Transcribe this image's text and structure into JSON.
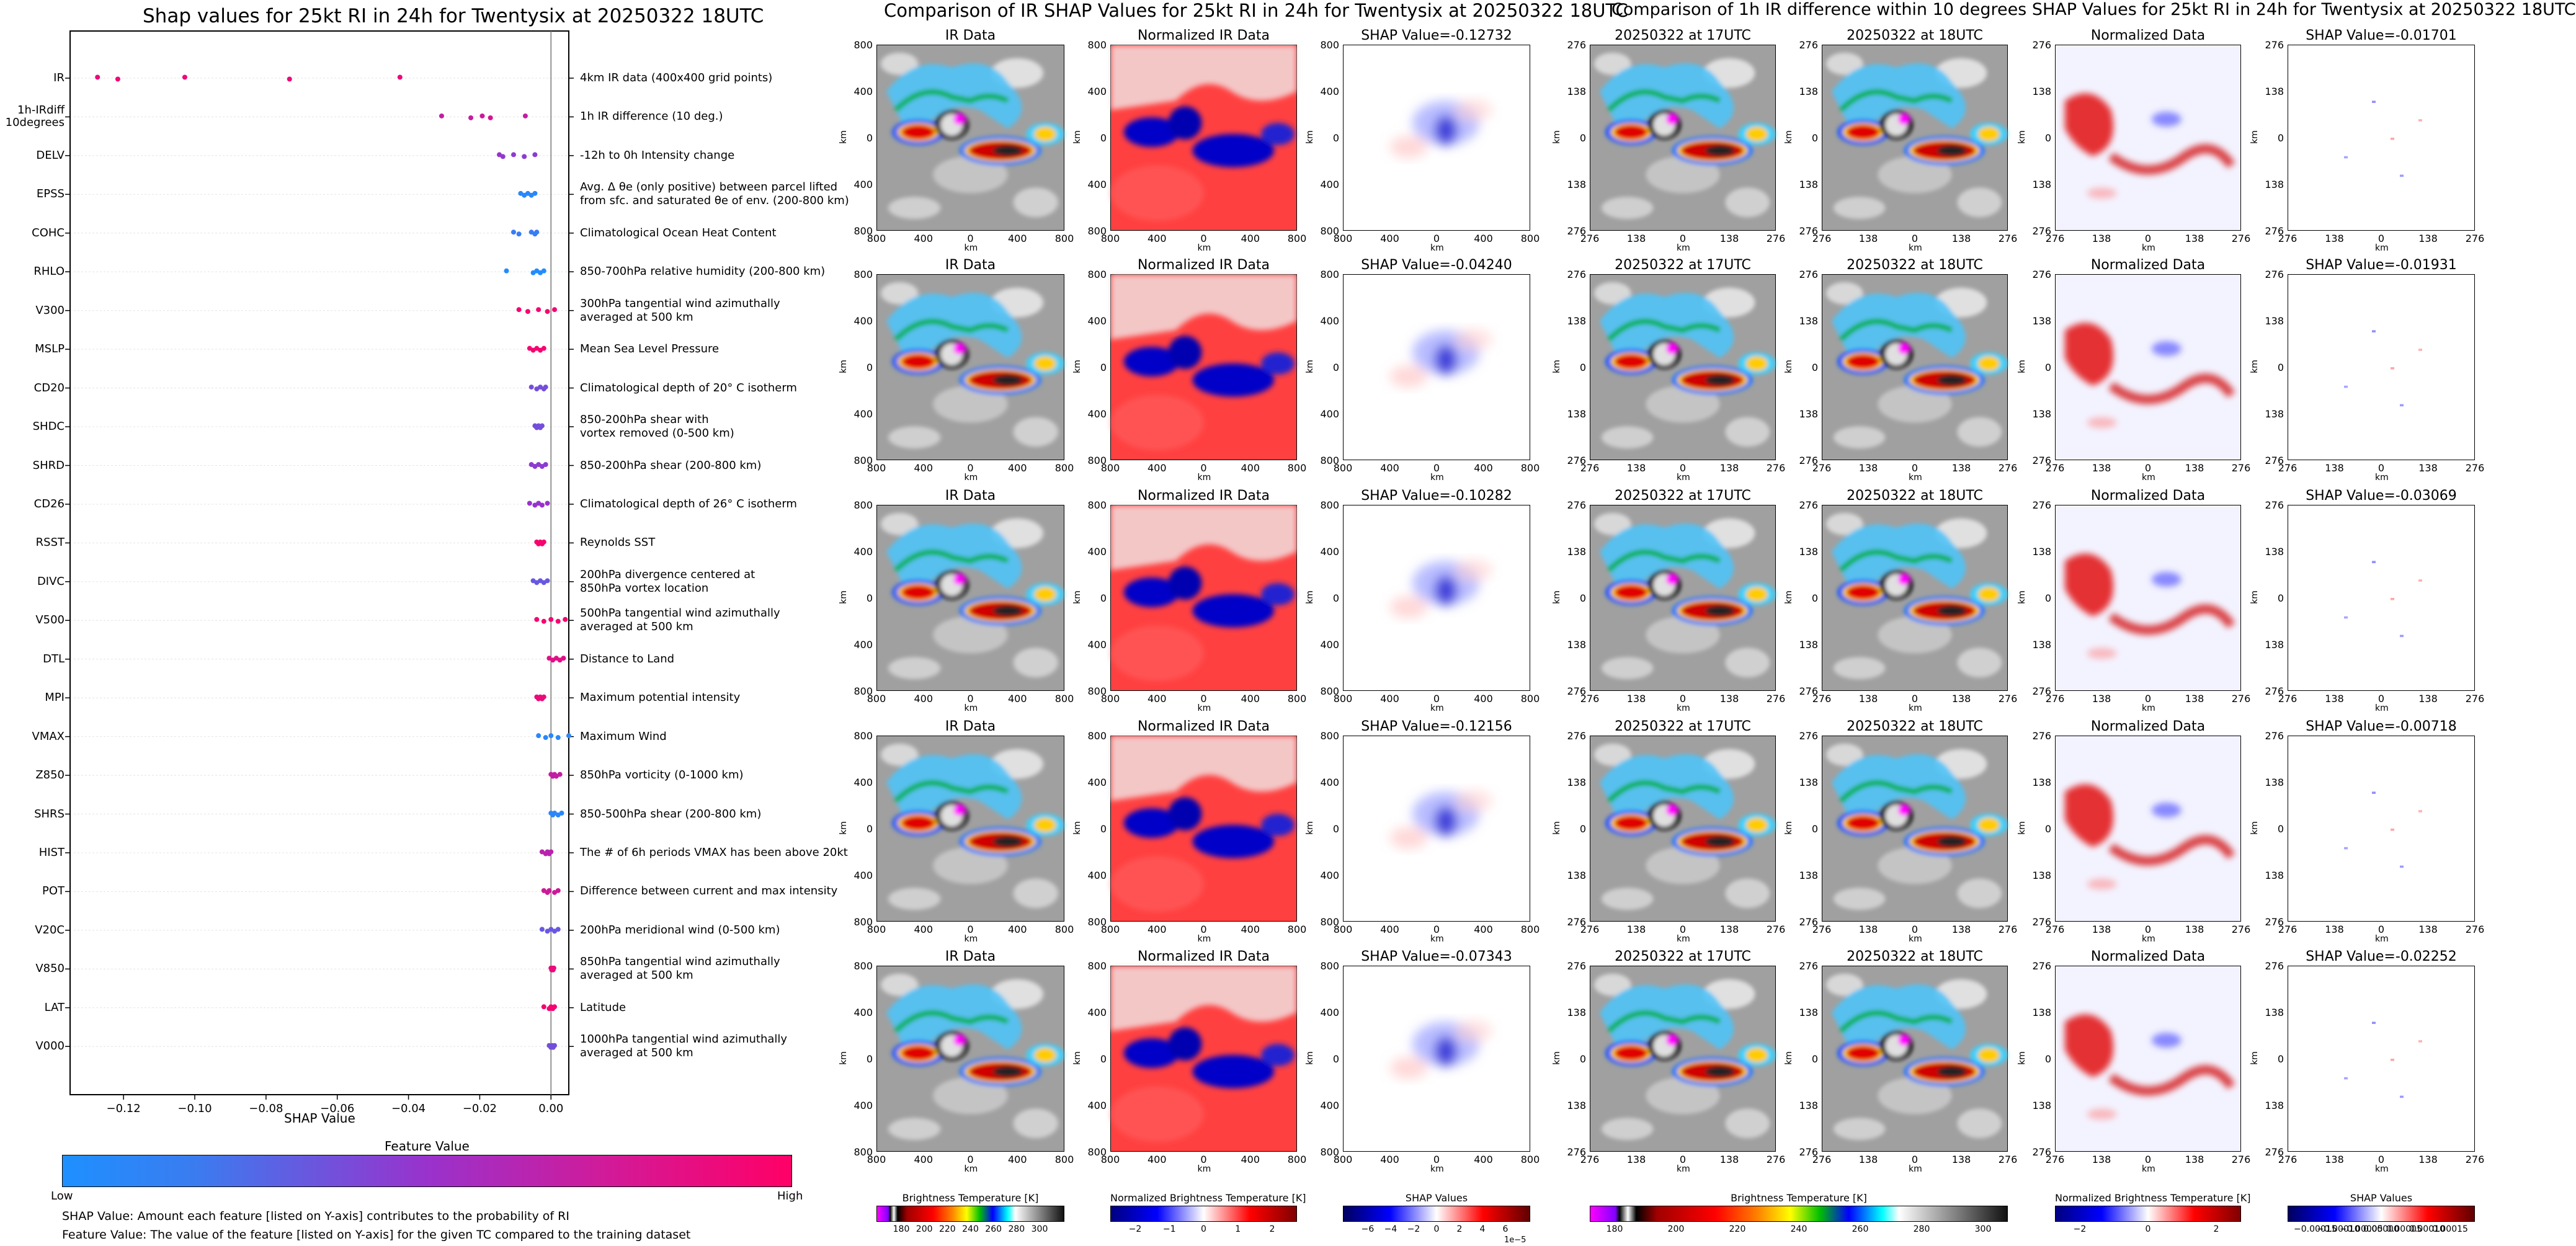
{
  "left": {
    "title": "Shap values for 25kt RI in 24h for Twentysix at 20250322 18UTC",
    "xlabel": "SHAP Value",
    "features": [
      {
        "code": "IR",
        "desc": "4km IR data (400x400 grid points)"
      },
      {
        "code": "1h-IRdiff\n10degrees",
        "desc": "1h IR difference (10 deg.)"
      },
      {
        "code": "DELV",
        "desc": "-12h to 0h Intensity change"
      },
      {
        "code": "EPSS",
        "desc": "Avg. Δ θe (only positive) between parcel lifted\nfrom sfc. and saturated θe of env. (200-800 km)"
      },
      {
        "code": "COHC",
        "desc": "Climatological Ocean Heat Content"
      },
      {
        "code": "RHLO",
        "desc": "850-700hPa relative humidity (200-800 km)"
      },
      {
        "code": "V300",
        "desc": "300hPa tangential wind azimuthally\naveraged at 500 km"
      },
      {
        "code": "MSLP",
        "desc": "Mean Sea Level Pressure"
      },
      {
        "code": "CD20",
        "desc": "Climatological depth of 20° C isotherm"
      },
      {
        "code": "SHDC",
        "desc": "850-200hPa shear with\nvortex removed (0-500 km)"
      },
      {
        "code": "SHRD",
        "desc": "850-200hPa shear (200-800 km)"
      },
      {
        "code": "CD26",
        "desc": "Climatological depth of 26° C isotherm"
      },
      {
        "code": "RSST",
        "desc": "Reynolds SST"
      },
      {
        "code": "DIVC",
        "desc": "200hPa divergence centered at\n850hPa vortex location"
      },
      {
        "code": "V500",
        "desc": "500hPa tangential wind azimuthally\naveraged at 500 km"
      },
      {
        "code": "DTL",
        "desc": "Distance to Land"
      },
      {
        "code": "MPI",
        "desc": "Maximum potential intensity"
      },
      {
        "code": "VMAX",
        "desc": "Maximum Wind"
      },
      {
        "code": "Z850",
        "desc": "850hPa vorticity (0-1000 km)"
      },
      {
        "code": "SHRS",
        "desc": "850-500hPa shear (200-800 km)"
      },
      {
        "code": "HIST",
        "desc": "The # of 6h periods VMAX has been above 20kt"
      },
      {
        "code": "POT",
        "desc": "Difference between current and max intensity"
      },
      {
        "code": "V20C",
        "desc": "200hPa meridional wind (0-500 km)"
      },
      {
        "code": "V850",
        "desc": "850hPa tangential wind azimuthally\naveraged at 500 km"
      },
      {
        "code": "LAT",
        "desc": "Latitude"
      },
      {
        "code": "V000",
        "desc": "1000hPa tangential wind azimuthally\naveraged at 500 km"
      }
    ],
    "xticks": [
      "−0.12",
      "−0.10",
      "−0.08",
      "−0.06",
      "−0.04",
      "−0.02",
      "0.00"
    ],
    "legend_title": "Feature Value",
    "legend_low": "Low",
    "legend_high": "High",
    "note1": "SHAP Value: Amount each feature [listed on Y-axis] contributes to the probability of RI",
    "note2": "Feature Value: The value of the feature [listed on Y-axis] for the given TC compared to the training dataset"
  },
  "mid": {
    "title": "Comparison of IR SHAP Values for 25kt RI in 24h for Twentysix at 20250322 18UTC",
    "col_titles": [
      "IR Data",
      "Normalized IR Data"
    ],
    "shap_prefix": "SHAP Value=",
    "shap_values": [
      "-0.12732",
      "-0.04240",
      "-0.10282",
      "-0.12156",
      "-0.07343"
    ],
    "ticks": [
      "800",
      "400",
      "0",
      "400",
      "800"
    ],
    "axis_label": "km",
    "cbar_labels": [
      "Brightness Temperature [K]",
      "Normalized Brightness Temperature [K]",
      "SHAP Values"
    ],
    "cbar1_ticks": [
      "180",
      "200",
      "220",
      "240",
      "260",
      "280",
      "300"
    ],
    "cbar2_ticks": [
      "−2",
      "−1",
      "0",
      "1",
      "2"
    ],
    "cbar3_ticks": [
      "−6",
      "−4",
      "−2",
      "0",
      "2",
      "4",
      "6"
    ],
    "cbar3_exp": "1e−5"
  },
  "right": {
    "title": "Comparison of 1h IR difference within 10 degrees SHAP Values for 25kt RI in 24h for Twentysix at 20250322 18UTC",
    "col_titles": [
      "20250322 at 17UTC",
      "20250322 at 18UTC",
      "Normalized Data"
    ],
    "shap_prefix": "SHAP Value=",
    "shap_values": [
      "-0.01701",
      "-0.01931",
      "-0.03069",
      "-0.00718",
      "-0.02252"
    ],
    "ticks": [
      "276",
      "138",
      "0",
      "138",
      "276"
    ],
    "axis_label": "km",
    "cbar_labels": [
      "Brightness Temperature [K]",
      "Normalized Brightness Temperature [K]",
      "SHAP Values"
    ],
    "cbar1_ticks": [
      "180",
      "200",
      "220",
      "240",
      "260",
      "280",
      "300"
    ],
    "cbar2_ticks": [
      "−2",
      "0",
      "2"
    ],
    "cbar3_ticks": [
      "−0.00015",
      "−0.00010",
      "−0.00005",
      "0.00000",
      "0.00005",
      "0.00010",
      "0.00015"
    ]
  },
  "chart_data": {
    "type": "scatter",
    "title": "Shap values for 25kt RI in 24h for Twentysix at 20250322 18UTC",
    "xlabel": "SHAP Value",
    "xlim": [
      -0.135,
      0.005
    ],
    "colormap": [
      "#1e90ff",
      "#9932cc",
      "#ff0066"
    ],
    "series": [
      {
        "feature": "IR",
        "x": [
          -0.1273,
          -0.1216,
          -0.1028,
          -0.0734,
          -0.0424
        ],
        "c": [
          0.9,
          0.9,
          0.9,
          0.9,
          0.9
        ]
      },
      {
        "feature": "1h-IRdiff 10degrees",
        "x": [
          -0.0307,
          -0.0225,
          -0.0193,
          -0.017,
          -0.0072
        ],
        "c": [
          0.7,
          0.7,
          0.75,
          0.8,
          0.7
        ]
      },
      {
        "feature": "DELV",
        "x": [
          -0.0145,
          -0.0135,
          -0.0105,
          -0.0075,
          -0.0045
        ],
        "c": [
          0.5,
          0.45,
          0.45,
          0.45,
          0.45
        ]
      },
      {
        "feature": "EPSS",
        "x": [
          -0.0085,
          -0.0075,
          -0.0065,
          -0.0055,
          -0.0045
        ],
        "c": [
          0.05,
          0.05,
          0.05,
          0.05,
          0.05
        ]
      },
      {
        "feature": "COHC",
        "x": [
          -0.0105,
          -0.009,
          -0.0055,
          -0.0045,
          -0.004
        ],
        "c": [
          0.1,
          0.1,
          0.1,
          0.1,
          0.1
        ]
      },
      {
        "feature": "RHLO",
        "x": [
          -0.0125,
          -0.005,
          -0.004,
          -0.003,
          -0.002
        ],
        "c": [
          0.02,
          0.02,
          0.02,
          0.02,
          0.02
        ]
      },
      {
        "feature": "V300",
        "x": [
          -0.009,
          -0.0065,
          -0.0035,
          -0.001,
          0.001
        ],
        "c": [
          0.95,
          0.95,
          0.95,
          0.95,
          0.95
        ]
      },
      {
        "feature": "MSLP",
        "x": [
          -0.006,
          -0.005,
          -0.004,
          -0.003,
          -0.002
        ],
        "c": [
          0.95,
          0.95,
          0.95,
          0.95,
          0.95
        ]
      },
      {
        "feature": "CD20",
        "x": [
          -0.0055,
          -0.004,
          -0.003,
          -0.002,
          -0.0015
        ],
        "c": [
          0.35,
          0.35,
          0.35,
          0.35,
          0.35
        ]
      },
      {
        "feature": "SHDC",
        "x": [
          -0.0045,
          -0.004,
          -0.0035,
          -0.003,
          -0.0025
        ],
        "c": [
          0.35,
          0.35,
          0.35,
          0.35,
          0.35
        ]
      },
      {
        "feature": "SHRD",
        "x": [
          -0.0055,
          -0.0045,
          -0.0035,
          -0.0025,
          -0.0015
        ],
        "c": [
          0.45,
          0.45,
          0.45,
          0.45,
          0.45
        ]
      },
      {
        "feature": "CD26",
        "x": [
          -0.006,
          -0.0045,
          -0.0035,
          -0.0025,
          -0.001
        ],
        "c": [
          0.5,
          0.5,
          0.5,
          0.5,
          0.5
        ]
      },
      {
        "feature": "RSST",
        "x": [
          -0.004,
          -0.0035,
          -0.003,
          -0.0025,
          -0.002
        ],
        "c": [
          0.95,
          0.95,
          0.95,
          0.95,
          0.95
        ]
      },
      {
        "feature": "DIVC",
        "x": [
          -0.005,
          -0.004,
          -0.003,
          -0.002,
          -0.001
        ],
        "c": [
          0.3,
          0.3,
          0.3,
          0.3,
          0.3
        ]
      },
      {
        "feature": "V500",
        "x": [
          -0.004,
          -0.002,
          0.0,
          0.002,
          0.004
        ],
        "c": [
          0.95,
          0.95,
          0.95,
          0.95,
          0.95
        ]
      },
      {
        "feature": "DTL",
        "x": [
          -0.0005,
          0.0005,
          0.0015,
          0.0025,
          0.0035
        ],
        "c": [
          0.85,
          0.85,
          0.85,
          0.85,
          0.85
        ]
      },
      {
        "feature": "MPI",
        "x": [
          -0.004,
          -0.0035,
          -0.003,
          -0.0025,
          -0.002
        ],
        "c": [
          0.9,
          0.9,
          0.9,
          0.9,
          0.9
        ]
      },
      {
        "feature": "VMAX",
        "x": [
          -0.0035,
          -0.0015,
          0.0,
          0.002,
          0.005
        ],
        "c": [
          0.05,
          0.05,
          0.05,
          0.05,
          0.05
        ]
      },
      {
        "feature": "Z850",
        "x": [
          0.0,
          0.0005,
          0.001,
          0.0015,
          0.0025
        ],
        "c": [
          0.7,
          0.7,
          0.7,
          0.7,
          0.7
        ]
      },
      {
        "feature": "SHRS",
        "x": [
          0.0,
          0.0005,
          0.001,
          0.002,
          0.003
        ],
        "c": [
          0.05,
          0.05,
          0.05,
          0.05,
          0.05
        ]
      },
      {
        "feature": "HIST",
        "x": [
          -0.0025,
          -0.0015,
          -0.001,
          -0.0005,
          0.0
        ],
        "c": [
          0.65,
          0.65,
          0.65,
          0.65,
          0.65
        ]
      },
      {
        "feature": "POT",
        "x": [
          -0.002,
          -0.001,
          -0.0005,
          0.001,
          0.002
        ],
        "c": [
          0.75,
          0.75,
          0.75,
          0.75,
          0.75
        ]
      },
      {
        "feature": "V20C",
        "x": [
          -0.0025,
          -0.001,
          0.0,
          0.001,
          0.002
        ],
        "c": [
          0.3,
          0.3,
          0.3,
          0.3,
          0.3
        ]
      },
      {
        "feature": "V850",
        "x": [
          0.0,
          0.0002,
          0.0004,
          0.0006,
          0.0008
        ],
        "c": [
          0.9,
          0.9,
          0.9,
          0.9,
          0.9
        ]
      },
      {
        "feature": "LAT",
        "x": [
          -0.002,
          -0.0005,
          0.0,
          0.0005,
          0.001
        ],
        "c": [
          0.95,
          0.95,
          0.95,
          0.95,
          0.95
        ]
      },
      {
        "feature": "V000",
        "x": [
          -0.0005,
          0.0,
          0.0003,
          0.0006,
          0.001
        ],
        "c": [
          0.35,
          0.35,
          0.35,
          0.35,
          0.35
        ]
      }
    ]
  }
}
